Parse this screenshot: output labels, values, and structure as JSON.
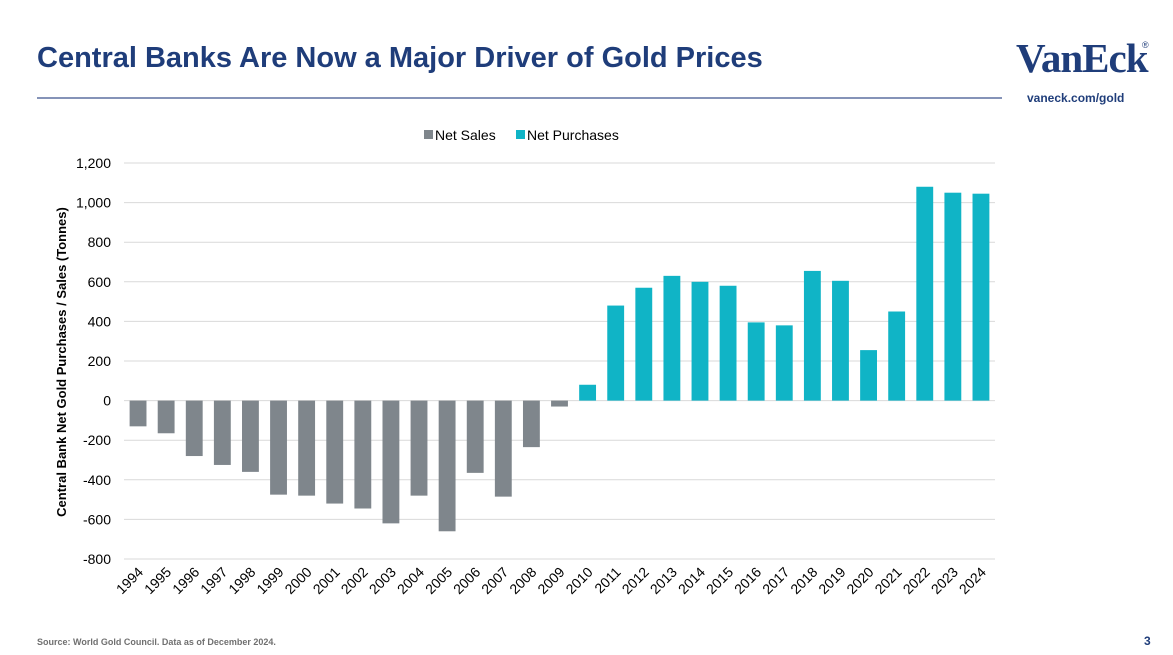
{
  "header": {
    "title": "Central Banks Are Now a Major Driver of Gold Prices",
    "logo_text": "VanEck",
    "logo_mark": "®",
    "url": "vaneck.com/gold"
  },
  "footer": {
    "source": "Source: World Gold Council. Data as of December 2024.",
    "page_number": "3"
  },
  "colors": {
    "title": "#1f3d7a",
    "net_sales": "#7f868c",
    "net_purchases": "#10b4c6",
    "grid": "#d9d9d9"
  },
  "chart_data": {
    "type": "bar",
    "title": "",
    "xlabel": "",
    "ylabel": "Central Bank Net Gold Purchases / Sales (Tonnes)",
    "ylim": [
      -800,
      1200
    ],
    "yticks": [
      1200,
      1000,
      800,
      600,
      400,
      200,
      0,
      -200,
      -400,
      -600,
      -800
    ],
    "ytick_labels": [
      "1,200",
      "1,000",
      "800",
      "600",
      "400",
      "200",
      "0",
      "-200",
      "-400",
      "-600",
      "-800"
    ],
    "grid": true,
    "legend_position": "top-center",
    "categories": [
      "1994",
      "1995",
      "1996",
      "1997",
      "1998",
      "1999",
      "2000",
      "2001",
      "2002",
      "2003",
      "2004",
      "2005",
      "2006",
      "2007",
      "2008",
      "2009",
      "2010",
      "2011",
      "2012",
      "2013",
      "2014",
      "2015",
      "2016",
      "2017",
      "2018",
      "2019",
      "2020",
      "2021",
      "2022",
      "2023",
      "2024"
    ],
    "values": [
      -130,
      -165,
      -280,
      -325,
      -360,
      -475,
      -480,
      -520,
      -545,
      -620,
      -480,
      -660,
      -365,
      -485,
      -235,
      -30,
      80,
      480,
      570,
      630,
      600,
      580,
      395,
      380,
      655,
      605,
      255,
      450,
      1080,
      1050,
      1045
    ],
    "series": [
      {
        "name": "Net Sales",
        "color": "#7f868c",
        "rule": "value < 0"
      },
      {
        "name": "Net Purchases",
        "color": "#10b4c6",
        "rule": "value >= 0"
      }
    ]
  }
}
